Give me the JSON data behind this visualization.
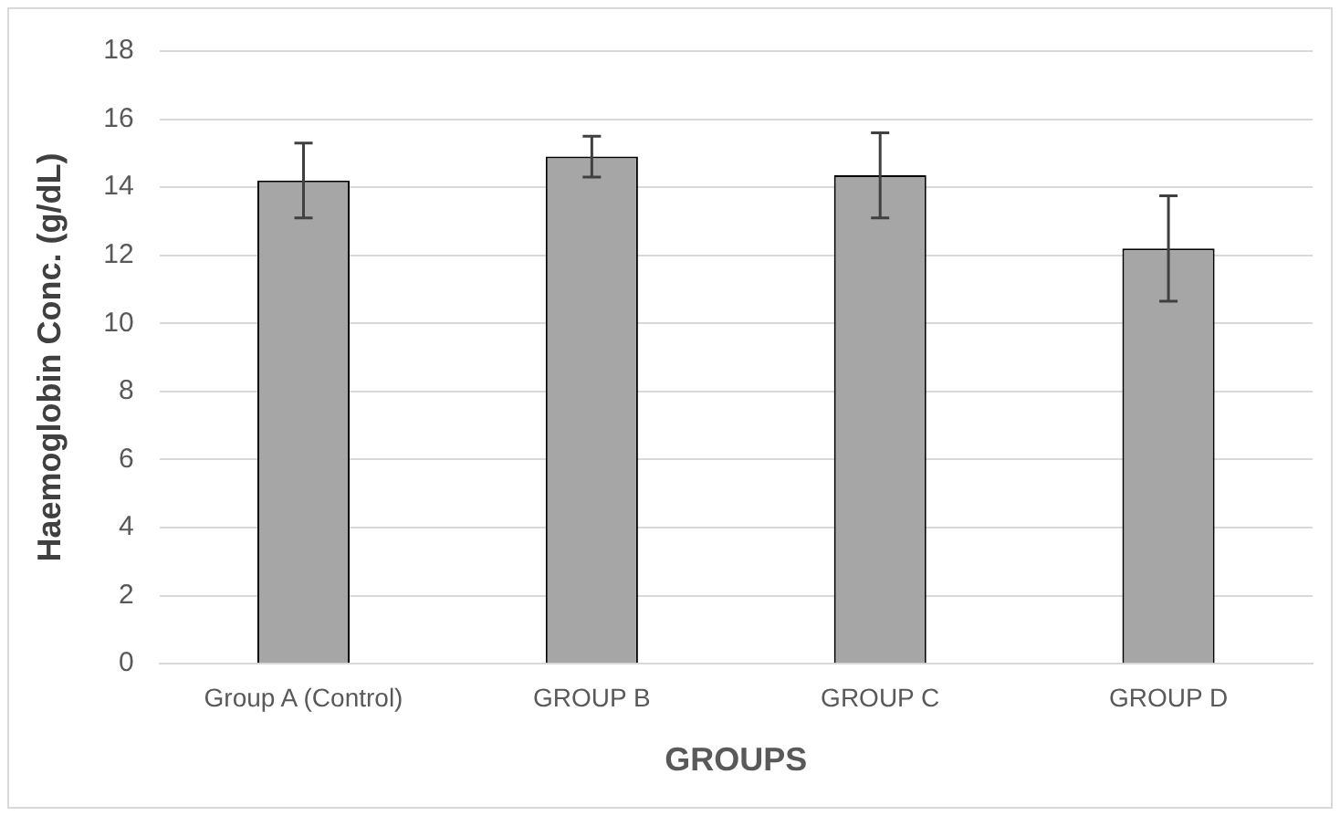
{
  "chart_data": {
    "type": "bar",
    "xlabel": "GROUPS",
    "ylabel": "Haemoglobin Conc. (g/dL)",
    "categories": [
      "Group A (Control)",
      "GROUP B",
      "GROUP C",
      "GROUP D"
    ],
    "values": [
      14.2,
      14.9,
      14.35,
      12.2
    ],
    "errors": [
      1.1,
      0.6,
      1.25,
      1.55
    ],
    "color": "#a6a6a6",
    "ylim": [
      0,
      18
    ],
    "yticks": [
      0,
      2,
      4,
      6,
      8,
      10,
      12,
      14,
      16,
      18
    ],
    "grid": "y",
    "legend": false
  }
}
